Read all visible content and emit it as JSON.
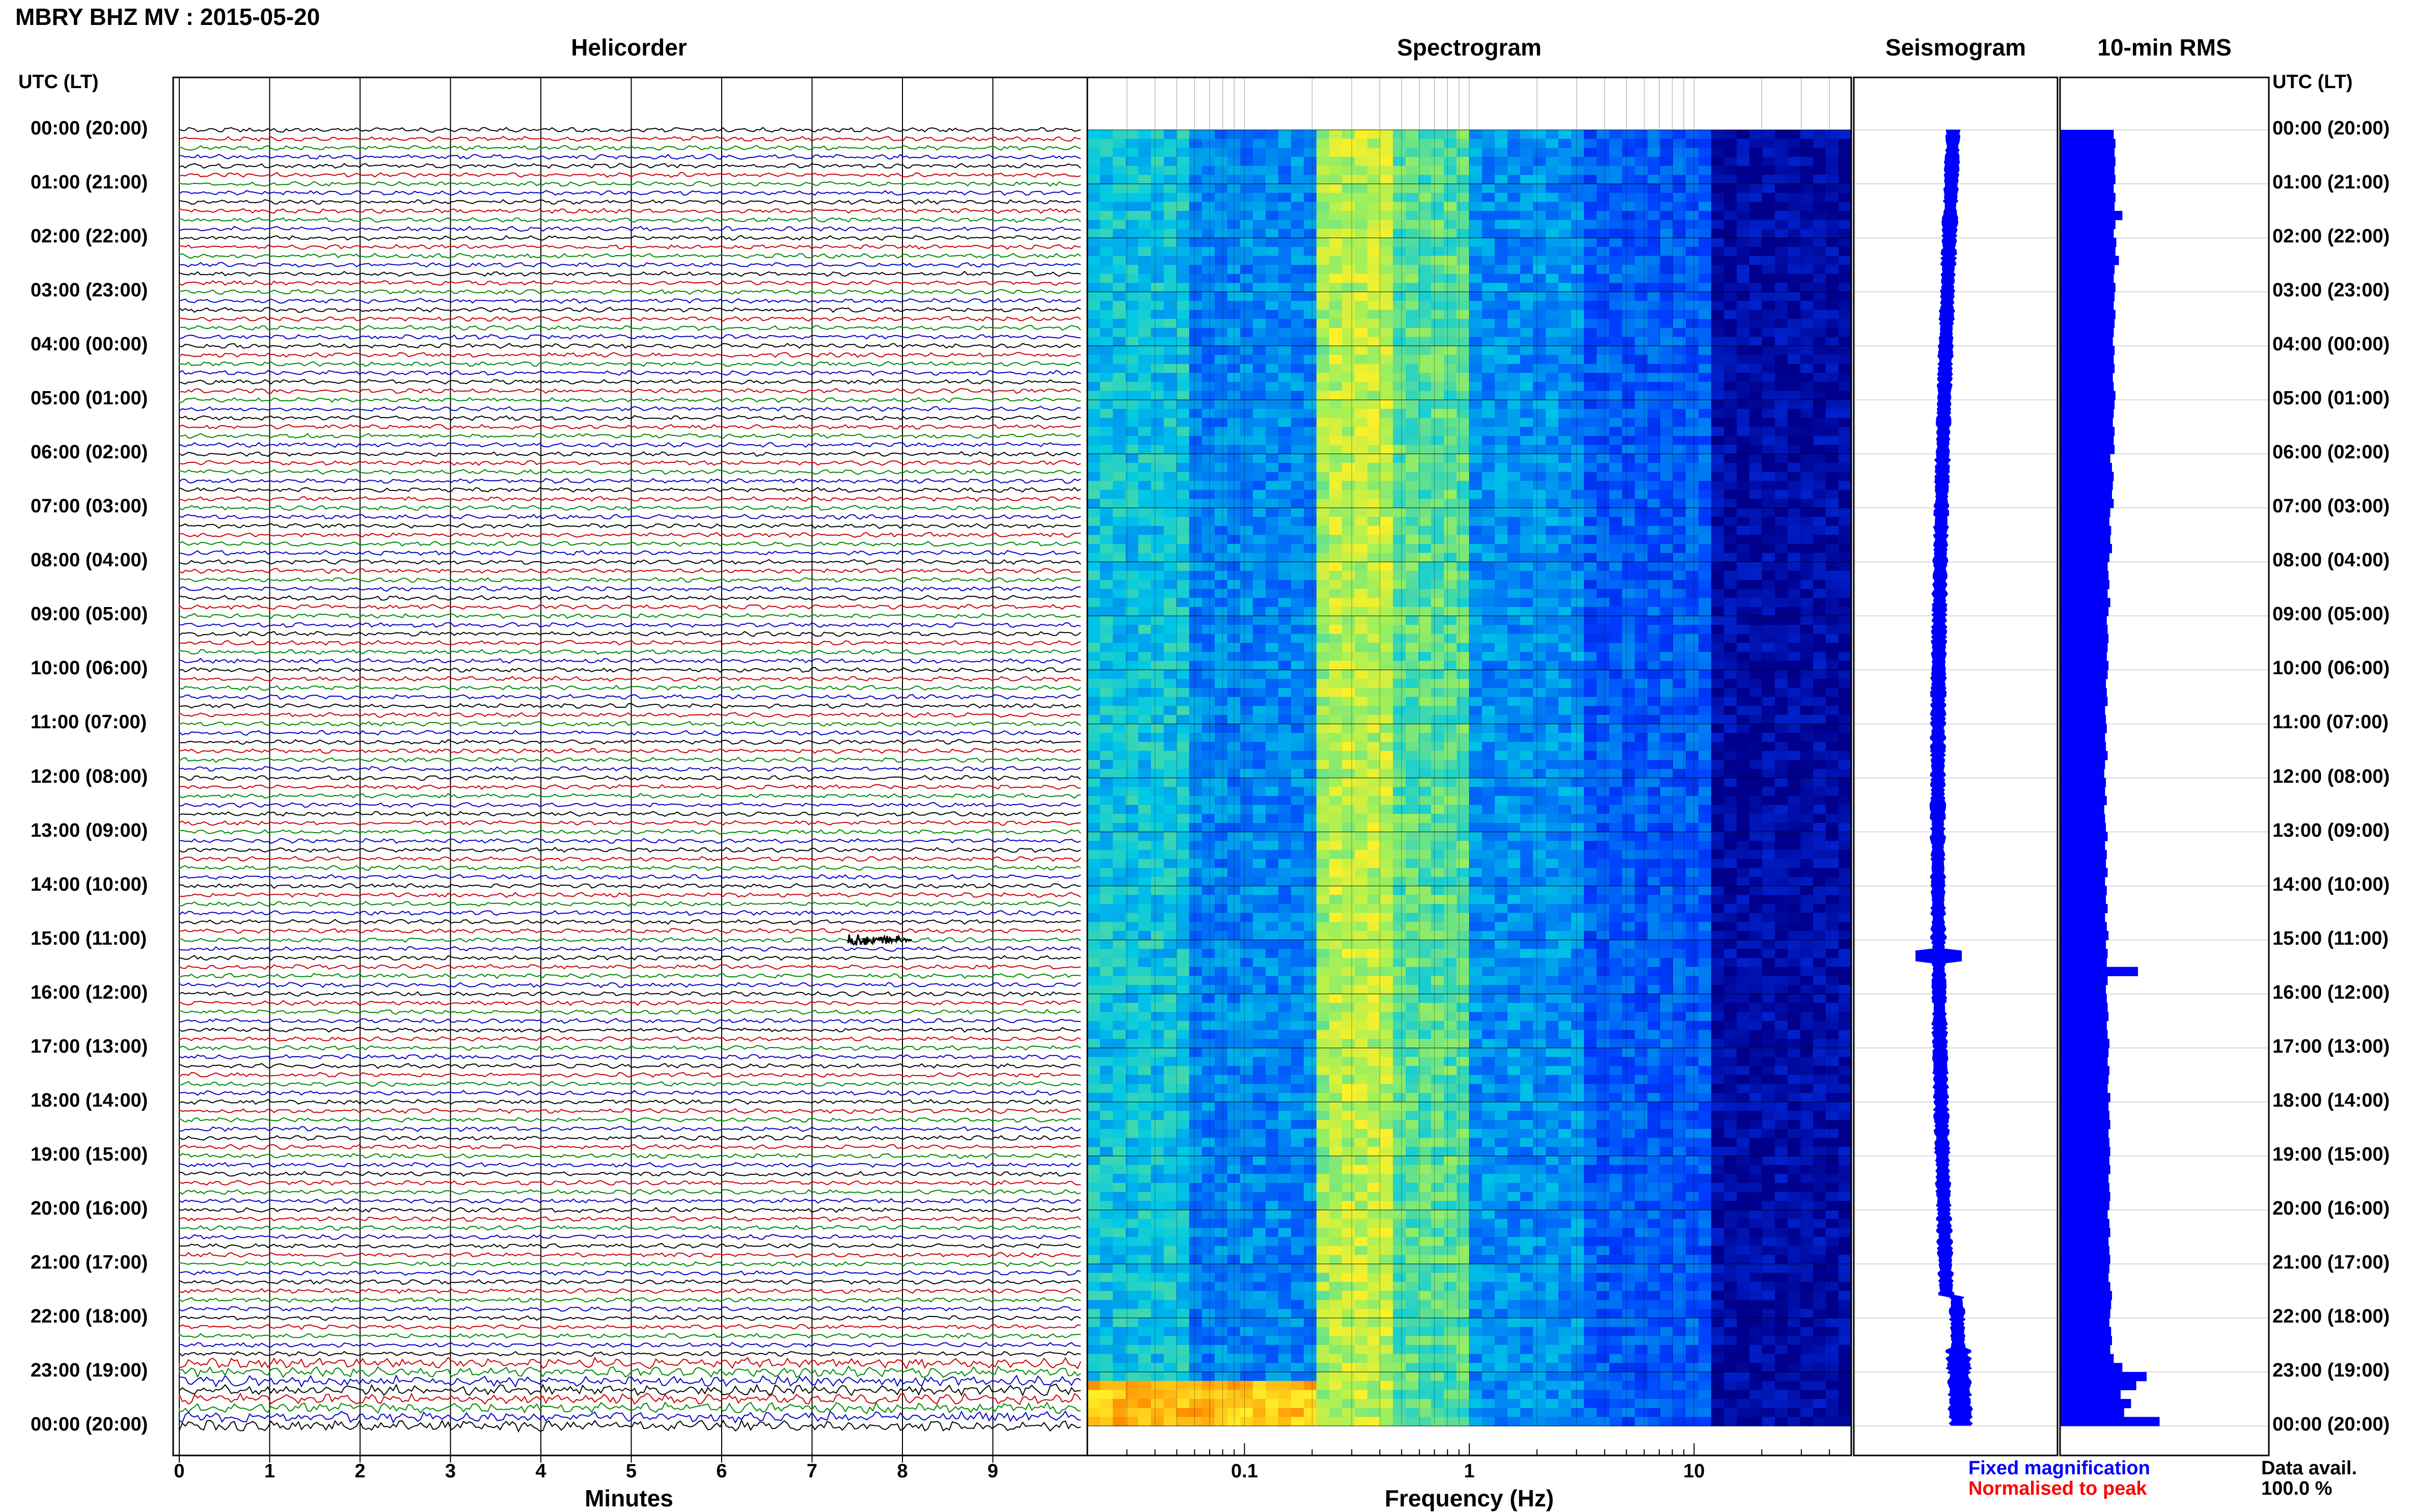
{
  "title": "MBRY BHZ MV : 2015-05-20",
  "panels": {
    "helicorder": "Helicorder",
    "spectrogram": "Spectrogram",
    "seismogram": "Seismogram",
    "rms": "10-min RMS"
  },
  "time_axis_label": "UTC (LT)",
  "time_labels": [
    "00:00 (20:00)",
    "01:00 (21:00)",
    "02:00 (22:00)",
    "03:00 (23:00)",
    "04:00 (00:00)",
    "05:00 (01:00)",
    "06:00 (02:00)",
    "07:00 (03:00)",
    "08:00 (04:00)",
    "09:00 (05:00)",
    "10:00 (06:00)",
    "11:00 (07:00)",
    "12:00 (08:00)",
    "13:00 (09:00)",
    "14:00 (10:00)",
    "15:00 (11:00)",
    "16:00 (12:00)",
    "17:00 (13:00)",
    "18:00 (14:00)",
    "19:00 (15:00)",
    "20:00 (16:00)",
    "21:00 (17:00)",
    "22:00 (18:00)",
    "23:00 (19:00)",
    "00:00 (20:00)"
  ],
  "helicorder_axis": {
    "label": "Minutes",
    "ticks": [
      "0",
      "1",
      "2",
      "3",
      "4",
      "5",
      "6",
      "7",
      "8",
      "9"
    ]
  },
  "spectrogram_axis": {
    "label": "Frequency (Hz)",
    "ticks": [
      "0.1",
      "1",
      "10"
    ],
    "scale": "log"
  },
  "legend": {
    "fixed": "Fixed magnification",
    "normalised": "Normalised to peak",
    "fixed_color": "#0000ff",
    "normalised_color": "#ff0000"
  },
  "data_avail": {
    "label": "Data avail.",
    "value": "100.0 %"
  },
  "colors": {
    "trace_cycle": [
      "#000000",
      "#cc0000",
      "#008800",
      "#0000cc"
    ],
    "rms_bar": "#0000ff"
  },
  "chart_data": [
    {
      "type": "line",
      "title": "Helicorder",
      "xlabel": "Minutes",
      "xlim": [
        0,
        10
      ],
      "rows_per_hour": 6,
      "hours": 24,
      "event": {
        "utc": "15:00",
        "minute_range": [
          7.4,
          8.1
        ]
      }
    },
    {
      "type": "heatmap",
      "title": "Spectrogram",
      "xlabel": "Frequency (Hz)",
      "x_scale": "log",
      "x_ticks": [
        0.1,
        1,
        10
      ]
    },
    {
      "type": "line",
      "title": "Seismogram",
      "series": [
        {
          "name": "Fixed magnification"
        },
        {
          "name": "Normalised to peak"
        }
      ]
    },
    {
      "type": "bar",
      "title": "10-min RMS",
      "bins": 144,
      "values_rel": [
        0.62,
        0.64,
        0.63,
        0.64,
        0.63,
        0.64,
        0.62,
        0.64,
        0.63,
        0.72,
        0.64,
        0.62,
        0.65,
        0.64,
        0.68,
        0.63,
        0.62,
        0.64,
        0.63,
        0.62,
        0.64,
        0.63,
        0.62,
        0.61,
        0.63,
        0.62,
        0.63,
        0.61,
        0.62,
        0.64,
        0.63,
        0.62,
        0.61,
        0.63,
        0.62,
        0.63,
        0.58,
        0.6,
        0.62,
        0.61,
        0.6,
        0.62,
        0.58,
        0.57,
        0.59,
        0.58,
        0.6,
        0.57,
        0.55,
        0.56,
        0.57,
        0.55,
        0.58,
        0.56,
        0.54,
        0.55,
        0.56,
        0.55,
        0.54,
        0.56,
        0.55,
        0.53,
        0.54,
        0.55,
        0.52,
        0.53,
        0.54,
        0.52,
        0.53,
        0.55,
        0.52,
        0.51,
        0.53,
        0.52,
        0.54,
        0.51,
        0.52,
        0.53,
        0.55,
        0.52,
        0.54,
        0.53,
        0.55,
        0.52,
        0.54,
        0.53,
        0.55,
        0.52,
        0.54,
        0.56,
        0.53,
        0.55,
        0.54,
        0.9,
        0.55,
        0.53,
        0.54,
        0.55,
        0.56,
        0.54,
        0.55,
        0.57,
        0.56,
        0.55,
        0.57,
        0.56,
        0.55,
        0.58,
        0.56,
        0.57,
        0.58,
        0.56,
        0.57,
        0.58,
        0.57,
        0.58,
        0.56,
        0.57,
        0.58,
        0.57,
        0.55,
        0.57,
        0.58,
        0.56,
        0.57,
        0.58,
        0.57,
        0.56,
        0.58,
        0.6,
        0.59,
        0.58,
        0.57,
        0.59,
        0.6,
        0.58,
        0.62,
        0.72,
        1.0,
        0.88,
        0.7,
        0.82,
        0.74,
        1.15
      ]
    }
  ]
}
